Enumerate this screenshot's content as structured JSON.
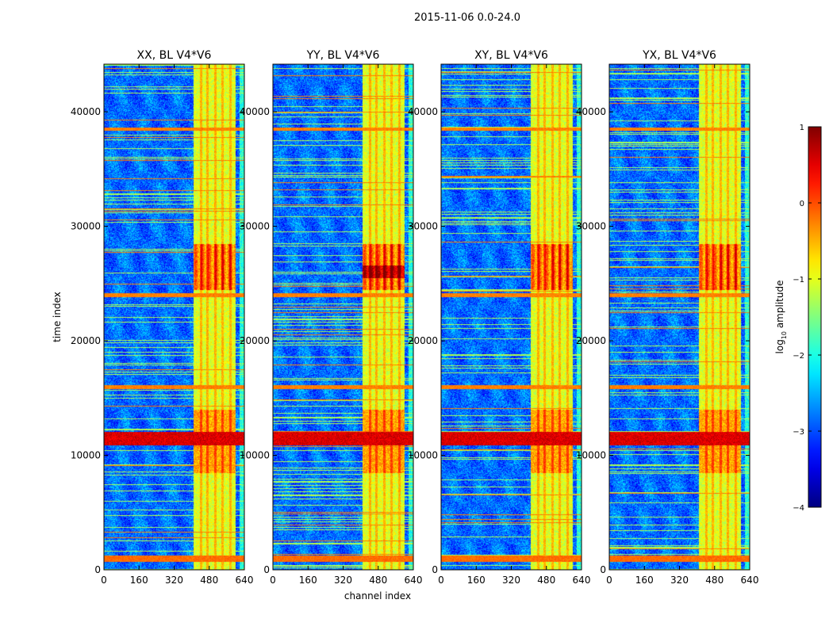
{
  "figure": {
    "suptitle": "2015-11-06 0.0-24.0"
  },
  "chart_data": [
    {
      "type": "heatmap",
      "title": "XX, BL V4*V6",
      "xlabel": "",
      "ylabel": "time index",
      "xlim": [
        0,
        640
      ],
      "ylim": [
        0,
        44160
      ],
      "xticks": [
        0,
        160,
        320,
        480,
        640
      ],
      "yticks": [
        0,
        10000,
        20000,
        30000,
        40000
      ],
      "xtick_labels": [
        "0",
        "160",
        "320",
        "480",
        "640"
      ],
      "ytick_labels": [
        "0",
        "10000",
        "20000",
        "30000",
        "40000"
      ],
      "band": [
        405,
        600
      ],
      "notes": "broadband RFI rows near 1000 and 11500; strongest band near 25000-28000"
    },
    {
      "type": "heatmap",
      "title": "YY, BL V4*V6",
      "xlabel": "channel index",
      "ylabel": "",
      "xlim": [
        0,
        640
      ],
      "ylim": [
        0,
        44160
      ],
      "xticks": [
        0,
        160,
        320,
        480,
        640
      ],
      "yticks": [
        0,
        10000,
        20000,
        30000,
        40000
      ],
      "xtick_labels": [
        "0",
        "160",
        "320",
        "480",
        "640"
      ],
      "ytick_labels": [
        "0",
        "10000",
        "20000",
        "30000",
        "40000"
      ],
      "band": [
        405,
        600
      ],
      "notes": "saturated region near 25500-26500"
    },
    {
      "type": "heatmap",
      "title": "XY, BL V4*V6",
      "xlabel": "",
      "ylabel": "",
      "xlim": [
        0,
        640
      ],
      "ylim": [
        0,
        44160
      ],
      "xticks": [
        0,
        160,
        320,
        480,
        640
      ],
      "yticks": [
        0,
        10000,
        20000,
        30000,
        40000
      ],
      "xtick_labels": [
        "0",
        "160",
        "320",
        "480",
        "640"
      ],
      "ytick_labels": [
        "0",
        "10000",
        "20000",
        "30000",
        "40000"
      ],
      "band": [
        405,
        600
      ],
      "notes": "similar structure to XX"
    },
    {
      "type": "heatmap",
      "title": "YX, BL V4*V6",
      "xlabel": "",
      "ylabel": "",
      "xlim": [
        0,
        640
      ],
      "ylim": [
        0,
        44160
      ],
      "xticks": [
        0,
        160,
        320,
        480,
        640
      ],
      "yticks": [
        0,
        10000,
        20000,
        30000,
        40000
      ],
      "xtick_labels": [
        "0",
        "160",
        "320",
        "480",
        "640"
      ],
      "ytick_labels": [
        "0",
        "10000",
        "20000",
        "30000",
        "40000"
      ],
      "band": [
        405,
        600
      ],
      "notes": "similar structure to YY"
    }
  ],
  "colorbar": {
    "label_prefix": "log",
    "label_sub": "10",
    "label_suffix": " amplitude",
    "range": [
      -4,
      1
    ],
    "ticks": [
      1,
      0,
      -1,
      -2,
      -3,
      -4
    ],
    "tick_labels": [
      "1",
      "0",
      "−1",
      "−2",
      "−3",
      "−4"
    ],
    "colormap": "jet"
  }
}
